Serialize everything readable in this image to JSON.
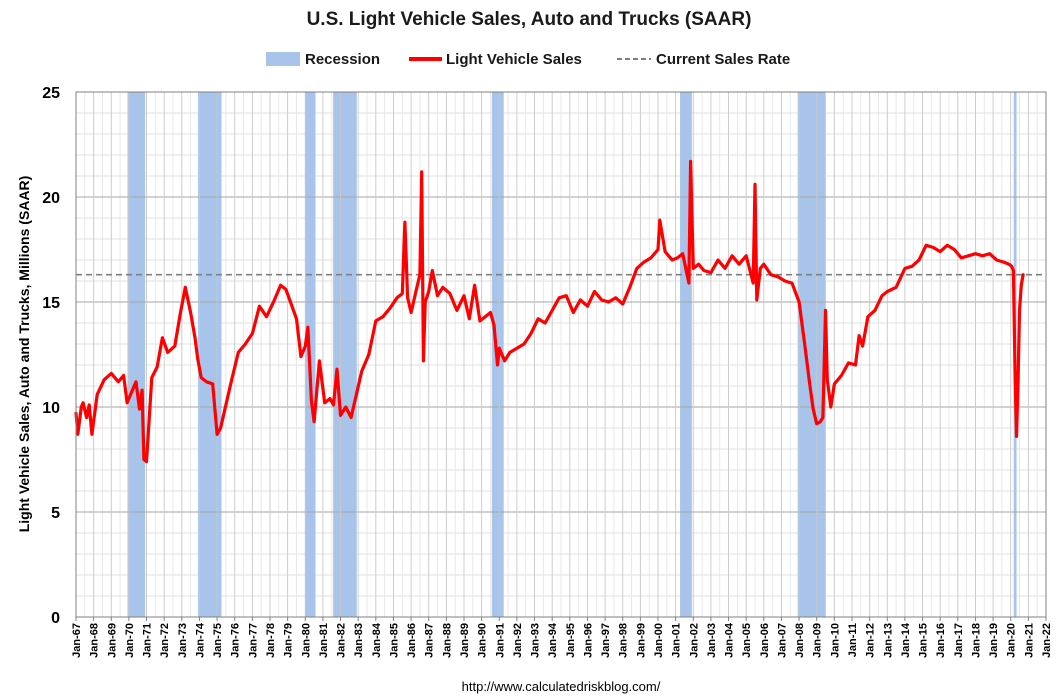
{
  "chart_data": {
    "type": "line",
    "title": "U.S. Light Vehicle Sales, Auto and Trucks (SAAR)",
    "ylabel": "Light Vehicle Sales, Auto and Trucks, Millions (SAAR)",
    "xlabel": "",
    "footer": "http://www.calculatedriskblog.com/",
    "xlim": [
      1967.0,
      2022.0
    ],
    "ylim": [
      0,
      25
    ],
    "yticks": [
      0,
      5,
      10,
      15,
      20,
      25
    ],
    "xtick_labels": [
      "Jan-67",
      "Jan-68",
      "Jan-69",
      "Jan-70",
      "Jan-71",
      "Jan-72",
      "Jan-73",
      "Jan-74",
      "Jan-75",
      "Jan-76",
      "Jan-77",
      "Jan-78",
      "Jan-79",
      "Jan-80",
      "Jan-81",
      "Jan-82",
      "Jan-83",
      "Jan-84",
      "Jan-85",
      "Jan-86",
      "Jan-87",
      "Jan-88",
      "Jan-89",
      "Jan-90",
      "Jan-91",
      "Jan-92",
      "Jan-93",
      "Jan-94",
      "Jan-95",
      "Jan-96",
      "Jan-97",
      "Jan-98",
      "Jan-99",
      "Jan-00",
      "Jan-01",
      "Jan-02",
      "Jan-03",
      "Jan-04",
      "Jan-05",
      "Jan-06",
      "Jan-07",
      "Jan-08",
      "Jan-09",
      "Jan-10",
      "Jan-11",
      "Jan-12",
      "Jan-13",
      "Jan-14",
      "Jan-15",
      "Jan-16",
      "Jan-17",
      "Jan-18",
      "Jan-19",
      "Jan-20",
      "Jan-21",
      "Jan-22"
    ],
    "grid": true,
    "legend": [
      {
        "name": "Recession",
        "style": "bar",
        "color": "#a9c4ea"
      },
      {
        "name": "Light Vehicle Sales",
        "style": "solid",
        "color": "#ff0000"
      },
      {
        "name": "Current Sales Rate",
        "style": "dashed",
        "color": "#7f7f7f"
      }
    ],
    "recessions": [
      [
        1969.92,
        1970.92
      ],
      [
        1973.92,
        1975.25
      ],
      [
        1980.0,
        1980.58
      ],
      [
        1981.58,
        1982.92
      ],
      [
        1990.58,
        1991.25
      ],
      [
        2001.25,
        2001.92
      ],
      [
        2007.92,
        2009.5
      ],
      [
        2020.17,
        2020.33
      ]
    ],
    "current_sales_rate": 16.3,
    "series": [
      {
        "name": "Light Vehicle Sales",
        "color": "#ff0000",
        "x": [
          1967.0,
          1967.1,
          1967.3,
          1967.4,
          1967.6,
          1967.75,
          1967.9,
          1968.2,
          1968.6,
          1969.0,
          1969.4,
          1969.7,
          1969.9,
          1970.2,
          1970.4,
          1970.6,
          1970.75,
          1970.85,
          1971.0,
          1971.3,
          1971.6,
          1971.9,
          1972.2,
          1972.6,
          1972.9,
          1973.2,
          1973.5,
          1973.75,
          1973.9,
          1974.1,
          1974.4,
          1974.75,
          1975.0,
          1975.2,
          1975.5,
          1975.8,
          1976.2,
          1976.6,
          1977.0,
          1977.4,
          1977.8,
          1978.2,
          1978.6,
          1978.9,
          1979.2,
          1979.5,
          1979.75,
          1980.0,
          1980.15,
          1980.35,
          1980.5,
          1980.8,
          1981.1,
          1981.4,
          1981.6,
          1981.8,
          1982.0,
          1982.3,
          1982.6,
          1982.9,
          1983.2,
          1983.6,
          1984.0,
          1984.4,
          1984.8,
          1985.2,
          1985.5,
          1985.65,
          1985.8,
          1986.0,
          1986.3,
          1986.5,
          1986.6,
          1986.7,
          1986.8,
          1987.0,
          1987.2,
          1987.5,
          1987.8,
          1988.2,
          1988.6,
          1989.0,
          1989.3,
          1989.6,
          1989.9,
          1990.2,
          1990.5,
          1990.7,
          1990.9,
          1991.0,
          1991.3,
          1991.6,
          1992.0,
          1992.4,
          1992.8,
          1993.2,
          1993.6,
          1994.0,
          1994.4,
          1994.8,
          1995.2,
          1995.6,
          1996.0,
          1996.4,
          1996.8,
          1997.2,
          1997.6,
          1998.0,
          1998.4,
          1998.8,
          1999.2,
          1999.6,
          2000.0,
          2000.1,
          2000.4,
          2000.8,
          2001.1,
          2001.4,
          2001.6,
          2001.75,
          2001.85,
          2002.0,
          2002.3,
          2002.6,
          2003.0,
          2003.4,
          2003.8,
          2004.2,
          2004.6,
          2005.0,
          2005.4,
          2005.5,
          2005.6,
          2005.8,
          2006.0,
          2006.4,
          2006.8,
          2007.2,
          2007.6,
          2008.0,
          2008.3,
          2008.6,
          2008.8,
          2009.0,
          2009.2,
          2009.35,
          2009.5,
          2009.6,
          2009.8,
          2010.0,
          2010.4,
          2010.8,
          2011.2,
          2011.4,
          2011.6,
          2011.9,
          2012.3,
          2012.7,
          2013.0,
          2013.5,
          2014.0,
          2014.4,
          2014.8,
          2015.2,
          2015.6,
          2016.0,
          2016.4,
          2016.8,
          2017.2,
          2017.6,
          2018.0,
          2018.4,
          2018.8,
          2019.2,
          2019.6,
          2019.9,
          2020.05,
          2020.15,
          2020.25,
          2020.33,
          2020.42,
          2020.5,
          2020.6,
          2020.7
        ],
        "values": [
          9.7,
          8.7,
          10.0,
          10.2,
          9.5,
          10.1,
          8.7,
          10.6,
          11.3,
          11.6,
          11.2,
          11.5,
          10.2,
          10.8,
          11.2,
          9.9,
          10.8,
          7.5,
          7.4,
          11.4,
          11.9,
          13.3,
          12.6,
          12.9,
          14.4,
          15.7,
          14.5,
          13.3,
          12.3,
          11.4,
          11.2,
          11.1,
          8.7,
          9.0,
          10.1,
          11.2,
          12.6,
          13.0,
          13.5,
          14.8,
          14.3,
          15.0,
          15.8,
          15.6,
          14.9,
          14.2,
          12.4,
          12.9,
          13.8,
          10.3,
          9.3,
          12.2,
          10.2,
          10.4,
          10.1,
          11.8,
          9.6,
          10.0,
          9.5,
          10.6,
          11.7,
          12.5,
          14.1,
          14.3,
          14.7,
          15.2,
          15.4,
          18.8,
          15.2,
          14.5,
          15.6,
          16.3,
          21.2,
          12.2,
          15.0,
          15.5,
          16.5,
          15.3,
          15.7,
          15.4,
          14.6,
          15.3,
          14.2,
          15.8,
          14.1,
          14.3,
          14.5,
          13.9,
          12.0,
          12.8,
          12.2,
          12.6,
          12.8,
          13.0,
          13.5,
          14.2,
          14.0,
          14.6,
          15.2,
          15.3,
          14.5,
          15.1,
          14.8,
          15.5,
          15.1,
          15.0,
          15.2,
          14.9,
          15.7,
          16.6,
          16.9,
          17.1,
          17.5,
          18.9,
          17.4,
          17.0,
          17.1,
          17.3,
          16.5,
          15.9,
          21.7,
          16.6,
          16.8,
          16.5,
          16.4,
          17.0,
          16.6,
          17.2,
          16.8,
          17.2,
          15.9,
          20.6,
          15.1,
          16.6,
          16.8,
          16.3,
          16.2,
          16.0,
          15.9,
          15.0,
          13.1,
          11.1,
          9.9,
          9.2,
          9.3,
          9.5,
          14.6,
          11.3,
          10.0,
          11.1,
          11.5,
          12.1,
          12.0,
          13.4,
          12.9,
          14.3,
          14.6,
          15.3,
          15.5,
          15.7,
          16.6,
          16.7,
          17.0,
          17.7,
          17.6,
          17.4,
          17.7,
          17.5,
          17.1,
          17.2,
          17.3,
          17.2,
          17.3,
          17.0,
          16.9,
          16.8,
          16.7,
          16.5,
          11.5,
          8.6,
          11.3,
          14.6,
          15.8,
          16.3
        ]
      }
    ]
  }
}
